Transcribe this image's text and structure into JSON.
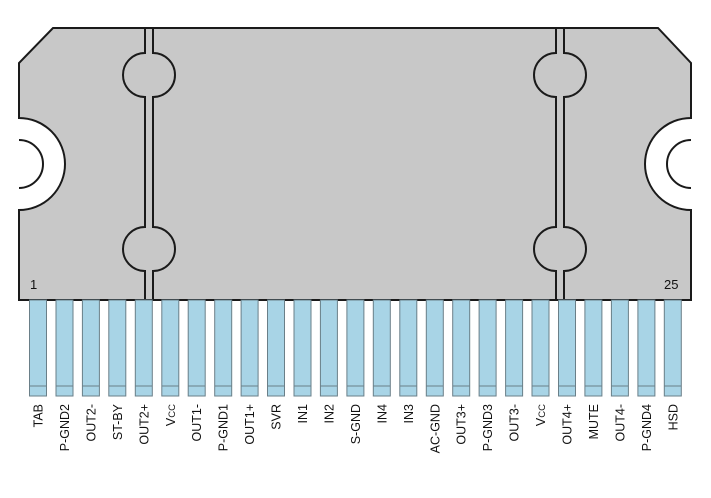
{
  "package": {
    "body_color": "#c8c8c8",
    "outline_color": "#1a1a1a",
    "pin_color": "#a8d4e6",
    "pin_stroke": "#6a7f88",
    "first_pin_number": "1",
    "last_pin_number": "25"
  },
  "pins": [
    {
      "label": "TAB"
    },
    {
      "label": "P-GND2"
    },
    {
      "label": "OUT2-"
    },
    {
      "label": "ST-BY"
    },
    {
      "label": "OUT2+"
    },
    {
      "label": "V",
      "sub": "CC"
    },
    {
      "label": "OUT1-"
    },
    {
      "label": "P-GND1"
    },
    {
      "label": "OUT1+"
    },
    {
      "label": "SVR"
    },
    {
      "label": "IN1"
    },
    {
      "label": "IN2"
    },
    {
      "label": "S-GND"
    },
    {
      "label": "IN4"
    },
    {
      "label": "IN3"
    },
    {
      "label": "AC-GND"
    },
    {
      "label": "OUT3+"
    },
    {
      "label": "P-GND3"
    },
    {
      "label": "OUT3-"
    },
    {
      "label": "V",
      "sub": "CC"
    },
    {
      "label": "OUT4+"
    },
    {
      "label": "MUTE"
    },
    {
      "label": "OUT4-"
    },
    {
      "label": "P-GND4"
    },
    {
      "label": "HSD"
    }
  ]
}
